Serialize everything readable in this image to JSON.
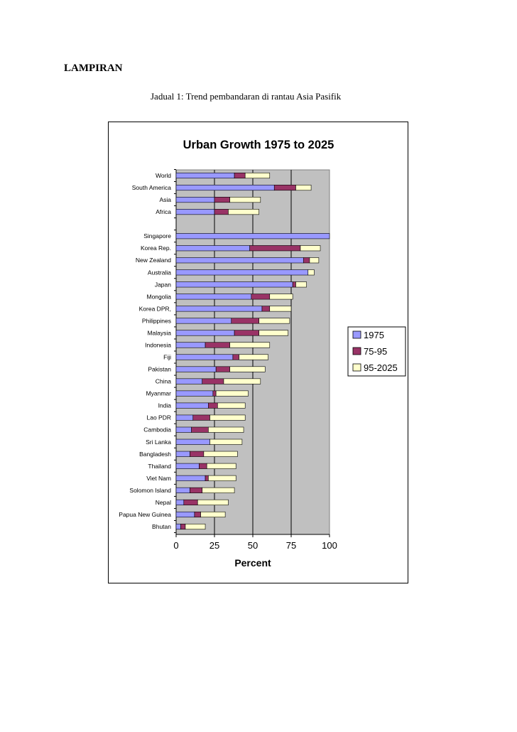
{
  "page": {
    "heading": "LAMPIRAN",
    "caption": "Jadual 1: Trend pembandaran di rantau Asia Pasifik"
  },
  "colors": {
    "s1975": "#9999ff",
    "s7595": "#993366",
    "s952025": "#ffffcc",
    "plot_bg": "#c0c0c0"
  },
  "chart_data": {
    "type": "bar",
    "orientation": "horizontal",
    "stacked": true,
    "title": "Urban Growth 1975 to 2025",
    "xlabel": "Percent",
    "ylabel": "",
    "xlim": [
      0,
      100
    ],
    "xticks": [
      "0",
      "25",
      "50",
      "75",
      "100"
    ],
    "grid": true,
    "legend_position": "right",
    "categories": [
      "World",
      "South America",
      "Asia",
      "Africa",
      "",
      "Singapore",
      "Korea Rep.",
      "New Zealand",
      "Australia",
      "Japan",
      "Mongolia",
      "Korea DPR,",
      "Philippines",
      "Malaysia",
      "Indonesia",
      "Fiji",
      "Pakistan",
      "China",
      "Myanmar",
      "India",
      "Lao PDR",
      "Cambodia",
      "Sri Lanka",
      "Bangladesh",
      "Thailand",
      "Viet Nam",
      "Solomon Island",
      "Nepal",
      "Papua New Guinea",
      "Bhutan"
    ],
    "series": [
      {
        "name": "1975",
        "values": [
          38,
          64,
          25,
          25,
          null,
          100,
          48,
          83,
          86,
          76,
          49,
          56,
          36,
          38,
          19,
          37,
          26,
          17,
          24,
          21,
          11,
          10,
          22,
          9,
          15,
          19,
          9,
          5,
          12,
          3
        ]
      },
      {
        "name": "75-95",
        "values": [
          7,
          14,
          10,
          9,
          null,
          0,
          33,
          4,
          0,
          2,
          12,
          5,
          18,
          16,
          16,
          4,
          9,
          14,
          2,
          6,
          11,
          11,
          0,
          9,
          5,
          2,
          8,
          9,
          4,
          3
        ]
      },
      {
        "name": "95-2025",
        "values": [
          16,
          10,
          20,
          20,
          null,
          0,
          13,
          6,
          4,
          7,
          15,
          14,
          20,
          19,
          26,
          19,
          23,
          24,
          21,
          18,
          23,
          23,
          21,
          22,
          19,
          18,
          21,
          20,
          16,
          13
        ]
      }
    ]
  }
}
